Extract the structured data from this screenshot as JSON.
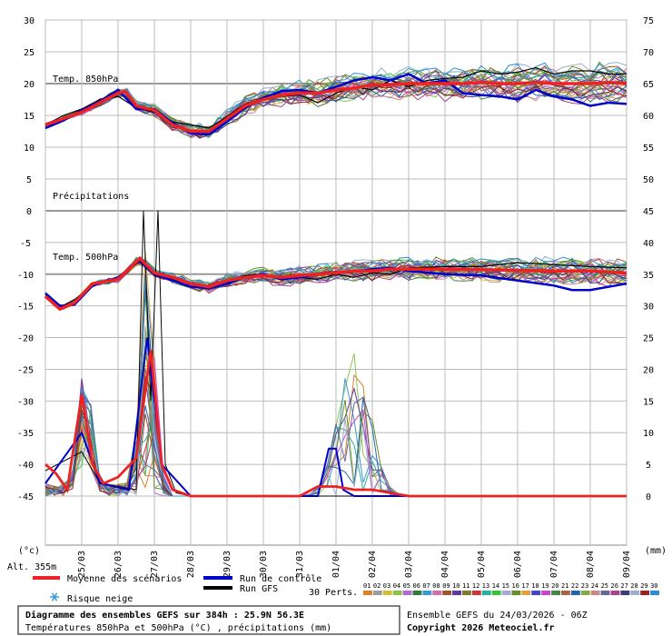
{
  "chart_data": {
    "type": "line",
    "panels": {
      "t850": {
        "label": "Temp. 850hPa",
        "ylim": [
          0,
          30
        ],
        "left_ticks": [
          "30",
          "25",
          "20",
          "15",
          "10",
          "5",
          "0"
        ]
      },
      "t500": {
        "label": "Temp. 500hPa",
        "ylim": [
          -45,
          0
        ],
        "left_ticks": [
          "-5",
          "-10",
          "-15",
          "-20",
          "-25",
          "-30",
          "-35",
          "-40",
          "-45"
        ]
      },
      "precip_label": "Précipitations",
      "right_ticks_top": [
        "75",
        "70",
        "65",
        "60",
        "55",
        "50",
        "45"
      ],
      "right_ticks_bottom": [
        "40",
        "35",
        "30",
        "25",
        "20",
        "15",
        "10",
        "5",
        "0"
      ]
    },
    "x_dates": [
      "25/03",
      "26/03",
      "27/03",
      "28/03",
      "29/03",
      "30/03",
      "31/03",
      "01/04",
      "02/04",
      "03/04",
      "04/04",
      "05/04",
      "06/04",
      "07/04",
      "08/04",
      "09/04"
    ],
    "x_range_days": [
      0,
      16
    ],
    "series": [
      {
        "name": "Moyenne des scénarios",
        "color": "#ee2222",
        "t850": [
          [
            0,
            13.5
          ],
          [
            0.5,
            14.5
          ],
          [
            1,
            15.5
          ],
          [
            1.5,
            17
          ],
          [
            2,
            18.5
          ],
          [
            2.2,
            18.8
          ],
          [
            2.5,
            16.5
          ],
          [
            3,
            15.8
          ],
          [
            3.5,
            13.5
          ],
          [
            4,
            12.5
          ],
          [
            4.5,
            12.5
          ],
          [
            5,
            14.5
          ],
          [
            5.5,
            16.5
          ],
          [
            6,
            17.5
          ],
          [
            6.5,
            18.2
          ],
          [
            7,
            18.5
          ],
          [
            7.5,
            18.5
          ],
          [
            8,
            19
          ],
          [
            8.5,
            19.3
          ],
          [
            9,
            19.8
          ],
          [
            9.5,
            19.8
          ],
          [
            10,
            20
          ],
          [
            10.5,
            20
          ],
          [
            11,
            20
          ],
          [
            11.5,
            20
          ],
          [
            12,
            20.2
          ],
          [
            12.5,
            20
          ],
          [
            13,
            20
          ],
          [
            13.5,
            20.2
          ],
          [
            14,
            20
          ],
          [
            14.5,
            20
          ],
          [
            15,
            20
          ],
          [
            15.5,
            20.2
          ],
          [
            16,
            20
          ]
        ],
        "t500": [
          [
            0,
            -13.5
          ],
          [
            0.4,
            -15.5
          ],
          [
            0.8,
            -14.5
          ],
          [
            1.3,
            -11.5
          ],
          [
            2,
            -10.8
          ],
          [
            2.6,
            -7.5
          ],
          [
            3,
            -9.8
          ],
          [
            3.5,
            -10.5
          ],
          [
            4,
            -11.5
          ],
          [
            4.5,
            -12
          ],
          [
            5,
            -11
          ],
          [
            5.5,
            -10.5
          ],
          [
            6,
            -10.2
          ],
          [
            6.5,
            -10.5
          ],
          [
            7,
            -10.2
          ],
          [
            7.5,
            -10
          ],
          [
            8,
            -9.8
          ],
          [
            8.5,
            -9.5
          ],
          [
            9,
            -9.5
          ],
          [
            9.5,
            -9.2
          ],
          [
            10,
            -9.2
          ],
          [
            11,
            -9.2
          ],
          [
            12,
            -9.3
          ],
          [
            13,
            -9.4
          ],
          [
            14,
            -9.5
          ],
          [
            15,
            -9.5
          ],
          [
            16,
            -9.8
          ]
        ],
        "precip": [
          [
            0,
            -40
          ],
          [
            0.3,
            -41.5
          ],
          [
            0.6,
            -44
          ],
          [
            1,
            -29
          ],
          [
            1.3,
            -40
          ],
          [
            1.6,
            -43
          ],
          [
            2,
            -42
          ],
          [
            2.5,
            -39
          ],
          [
            2.9,
            -22
          ],
          [
            3.2,
            -40
          ],
          [
            3.5,
            -44
          ],
          [
            4,
            -45
          ],
          [
            7,
            -45
          ],
          [
            7.5,
            -43.5
          ],
          [
            8,
            -43.5
          ],
          [
            8.5,
            -44
          ],
          [
            9,
            -44
          ],
          [
            9.5,
            -44.5
          ],
          [
            10,
            -45
          ],
          [
            16,
            -45
          ]
        ]
      },
      {
        "name": "Run de contrôle",
        "color": "#0000cc",
        "t850": [
          [
            0,
            13
          ],
          [
            0.5,
            14.2
          ],
          [
            1,
            15.8
          ],
          [
            1.5,
            17.2
          ],
          [
            2,
            19
          ],
          [
            2.5,
            16
          ],
          [
            3,
            16
          ],
          [
            3.5,
            13.8
          ],
          [
            4,
            12.2
          ],
          [
            4.5,
            12
          ],
          [
            5,
            14
          ],
          [
            5.5,
            16.2
          ],
          [
            6,
            17.8
          ],
          [
            6.5,
            18.8
          ],
          [
            7,
            19
          ],
          [
            7.5,
            18.5
          ],
          [
            8,
            19.5
          ],
          [
            8.5,
            20.5
          ],
          [
            9,
            21
          ],
          [
            9.5,
            20.5
          ],
          [
            10,
            21.5
          ],
          [
            10.5,
            20
          ],
          [
            11,
            20.5
          ],
          [
            11.5,
            18.5
          ],
          [
            12,
            18.2
          ],
          [
            12.5,
            18
          ],
          [
            13,
            17.5
          ],
          [
            13.5,
            19
          ],
          [
            14,
            18
          ],
          [
            14.5,
            17.5
          ],
          [
            15,
            16.5
          ],
          [
            15.5,
            17
          ],
          [
            16,
            16.8
          ]
        ],
        "t500": [
          [
            0,
            -13
          ],
          [
            0.4,
            -15
          ],
          [
            0.8,
            -14.8
          ],
          [
            1.3,
            -11.8
          ],
          [
            2,
            -10.5
          ],
          [
            2.6,
            -7.8
          ],
          [
            3,
            -10
          ],
          [
            3.5,
            -11
          ],
          [
            4,
            -12
          ],
          [
            4.5,
            -12.2
          ],
          [
            5,
            -11.5
          ],
          [
            5.5,
            -10.5
          ],
          [
            6,
            -10
          ],
          [
            6.5,
            -10.8
          ],
          [
            7,
            -10.5
          ],
          [
            7.5,
            -10
          ],
          [
            8,
            -9.8
          ],
          [
            8.5,
            -9.6
          ],
          [
            9,
            -9.2
          ],
          [
            9.5,
            -9
          ],
          [
            10,
            -9.5
          ],
          [
            11,
            -10
          ],
          [
            12,
            -10.2
          ],
          [
            13,
            -11
          ],
          [
            14,
            -11.8
          ],
          [
            14.5,
            -12.5
          ],
          [
            15,
            -12.5
          ],
          [
            15.5,
            -12
          ],
          [
            16,
            -11.5
          ]
        ],
        "precip": [
          [
            0,
            -43
          ],
          [
            1,
            -35
          ],
          [
            1.5,
            -43
          ],
          [
            2.3,
            -44
          ],
          [
            2.8,
            -20
          ],
          [
            3.2,
            -40
          ],
          [
            4,
            -45
          ],
          [
            7.5,
            -45
          ],
          [
            7.8,
            -37.5
          ],
          [
            8,
            -37.5
          ],
          [
            8.2,
            -44
          ],
          [
            8.5,
            -45
          ],
          [
            16,
            -45
          ]
        ]
      },
      {
        "name": "Run GFS",
        "color": "#000000",
        "t850": [
          [
            0,
            13.5
          ],
          [
            0.5,
            15
          ],
          [
            1,
            16
          ],
          [
            1.5,
            17.5
          ],
          [
            2,
            18
          ],
          [
            2.5,
            16.2
          ],
          [
            3,
            15.5
          ],
          [
            3.5,
            14
          ],
          [
            4,
            13.5
          ],
          [
            4.5,
            13
          ],
          [
            5,
            14.8
          ],
          [
            5.5,
            16.8
          ],
          [
            6,
            17.5
          ],
          [
            6.5,
            18
          ],
          [
            7,
            18.2
          ],
          [
            7.5,
            17
          ],
          [
            8,
            18.5
          ],
          [
            8.5,
            19.5
          ],
          [
            9,
            19
          ],
          [
            9.5,
            20.5
          ],
          [
            10,
            19.5
          ],
          [
            10.5,
            20.5
          ],
          [
            11,
            20.8
          ],
          [
            11.5,
            21
          ],
          [
            12,
            22
          ],
          [
            12.5,
            21.5
          ],
          [
            13,
            21.8
          ],
          [
            13.5,
            22.5
          ],
          [
            14,
            21.5
          ],
          [
            14.5,
            22
          ],
          [
            15,
            22
          ],
          [
            15.5,
            21.5
          ],
          [
            16,
            21.5
          ]
        ],
        "t500": [
          [
            0,
            -13.2
          ],
          [
            0.4,
            -15.2
          ],
          [
            0.8,
            -14
          ],
          [
            1.3,
            -11.8
          ],
          [
            2,
            -10.5
          ],
          [
            2.6,
            -8
          ],
          [
            3,
            -10.2
          ],
          [
            3.5,
            -10.8
          ],
          [
            4,
            -11.5
          ],
          [
            4.5,
            -11.8
          ],
          [
            5,
            -11.2
          ],
          [
            5.5,
            -10.2
          ],
          [
            6,
            -10
          ],
          [
            6.5,
            -10.5
          ],
          [
            7,
            -10.5
          ],
          [
            7.5,
            -10.8
          ],
          [
            8,
            -10
          ],
          [
            8.5,
            -10.5
          ],
          [
            9,
            -9.8
          ],
          [
            9.5,
            -10
          ],
          [
            10,
            -9
          ],
          [
            11,
            -8.8
          ],
          [
            12,
            -8.8
          ],
          [
            13,
            -8.2
          ],
          [
            14,
            -8.5
          ],
          [
            15,
            -8.8
          ],
          [
            16,
            -9
          ]
        ],
        "precip": [
          [
            0,
            -41
          ],
          [
            1,
            -38
          ],
          [
            1.5,
            -43
          ],
          [
            2.5,
            -44
          ],
          [
            2.7,
            0
          ],
          [
            2.9,
            -30
          ],
          [
            3.1,
            0
          ],
          [
            3.3,
            -40
          ],
          [
            3.6,
            -44.5
          ],
          [
            4,
            -45
          ],
          [
            16,
            -45
          ]
        ]
      }
    ],
    "members": {
      "count": 30,
      "label": "30 Perts.",
      "numbers": [
        "01",
        "02",
        "03",
        "04",
        "05",
        "06",
        "07",
        "08",
        "09",
        "10",
        "11",
        "12",
        "13",
        "14",
        "15",
        "16",
        "17",
        "18",
        "19",
        "20",
        "21",
        "22",
        "23",
        "24",
        "25",
        "26",
        "27",
        "28",
        "29",
        "30"
      ],
      "colors": [
        "#d8832a",
        "#9c9c9c",
        "#d4c034",
        "#8fc44a",
        "#b36ad6",
        "#2f7b3f",
        "#3f96d8",
        "#d26ea6",
        "#a0522d",
        "#5a3a9c",
        "#7c7c2a",
        "#c83a3a",
        "#2ab0a0",
        "#3ac43a",
        "#a8a8d8",
        "#6b8e23",
        "#e0a040",
        "#4444cc",
        "#cc44cc",
        "#448844",
        "#aa6644",
        "#2266aa",
        "#88aa44",
        "#cc8888",
        "#666699",
        "#aa4488",
        "#3c3c78",
        "#99b0c8",
        "#992222",
        "#2b8fcf"
      ]
    },
    "legend": {
      "mean": "Moyenne des scénarios",
      "control": "Run de contrôle",
      "gfs": "Run GFS",
      "snow": "Risque neige"
    },
    "unit_left": "(°c)",
    "unit_right": "(mm)",
    "altitude": "Alt. 355m",
    "title": "Diagramme des ensembles GEFS sur 384h : 25.9N 56.3E",
    "subtitle": "Températures 850hPa et 500hPa (°C) , précipitations (mm)",
    "run_info": "Ensemble GEFS du 24/03/2026 - 06Z",
    "copyright": "Copyright 2026 Meteociel.fr",
    "colors": {
      "mean": "#ee2222",
      "control": "#0000cc",
      "gfs": "#000000",
      "grid": "#aaaaaa",
      "zero_line": "#999999",
      "snow": "#3399dd"
    }
  }
}
